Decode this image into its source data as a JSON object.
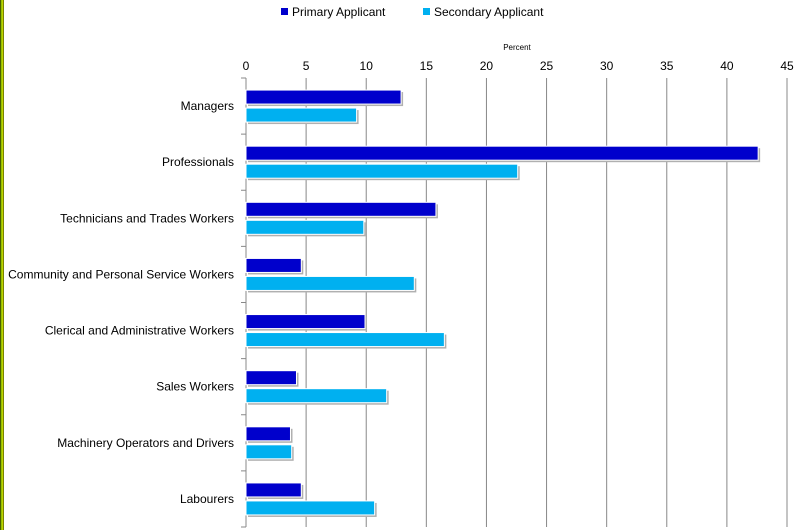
{
  "chart_data": {
    "type": "bar",
    "orientation": "horizontal",
    "title": "",
    "xlabel": "Percent",
    "ylabel": "",
    "xlim": [
      0,
      45
    ],
    "xticks": [
      "0",
      "5",
      "10",
      "15",
      "20",
      "25",
      "30",
      "35",
      "40",
      "45"
    ],
    "grid": "vertical",
    "legend_position": "top",
    "categories": [
      "Managers",
      "Professionals",
      "Technicians and Trades Workers",
      "Community and Personal Service Workers",
      "Clerical and Administrative Workers",
      "Sales Workers",
      "Machinery Operators and Drivers",
      "Labourers"
    ],
    "series": [
      {
        "name": "Primary Applicant",
        "color": "#0000cc",
        "values": [
          12.9,
          42.6,
          15.8,
          4.6,
          9.9,
          4.2,
          3.7,
          4.6
        ]
      },
      {
        "name": "Secondary Applicant",
        "color": "#00b0f0",
        "values": [
          9.2,
          22.6,
          9.8,
          14.0,
          16.5,
          11.7,
          3.8,
          10.7
        ]
      }
    ]
  }
}
